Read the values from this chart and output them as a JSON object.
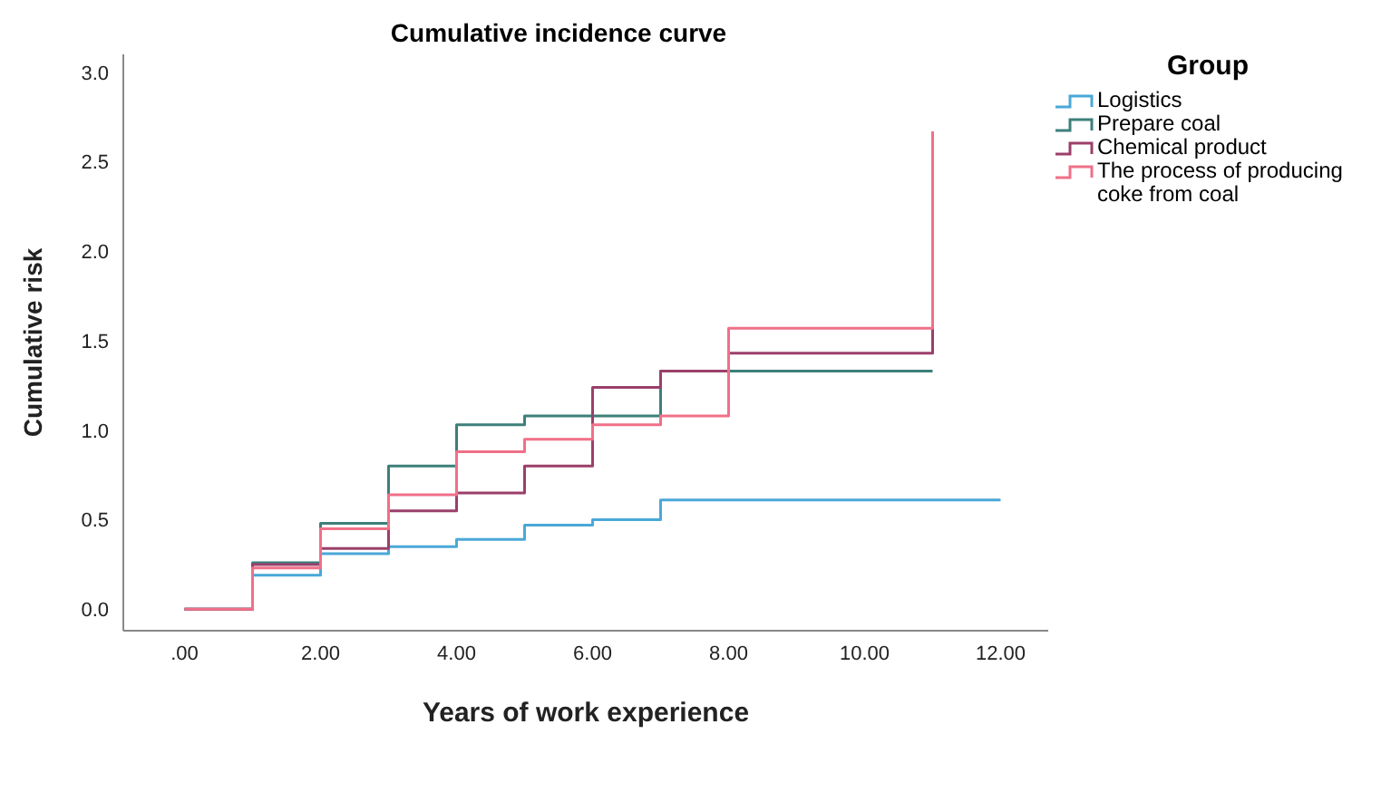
{
  "chart_data": {
    "type": "step",
    "title": "Cumulative incidence curve",
    "xlabel": "Years of work experience",
    "ylabel": "Cumulative risk",
    "legend_title": "Group",
    "legend": "top right",
    "grid": false,
    "marker": "none",
    "line_style": "solid",
    "xlim": [
      -0.9,
      12.7
    ],
    "ylim": [
      -0.12,
      3.1
    ],
    "xticks": [
      {
        "value": 0,
        "label": ".00"
      },
      {
        "value": 2,
        "label": "2.00"
      },
      {
        "value": 4,
        "label": "4.00"
      },
      {
        "value": 6,
        "label": "6.00"
      },
      {
        "value": 8,
        "label": "8.00"
      },
      {
        "value": 10,
        "label": "10.00"
      },
      {
        "value": 12,
        "label": "12.00"
      }
    ],
    "yticks": [
      {
        "value": 0,
        "label": "0.0"
      },
      {
        "value": 0.5,
        "label": "0.5"
      },
      {
        "value": 1,
        "label": "1.0"
      },
      {
        "value": 1.5,
        "label": "1.5"
      },
      {
        "value": 2,
        "label": "2.0"
      },
      {
        "value": 2.5,
        "label": "2.5"
      },
      {
        "value": 3,
        "label": "3.0"
      }
    ],
    "series": [
      {
        "name": "Logistics",
        "color": "#4aa8d8",
        "x": [
          0,
          1,
          2,
          3,
          4,
          5,
          6,
          7,
          12
        ],
        "values": [
          0,
          0.19,
          0.31,
          0.35,
          0.39,
          0.47,
          0.5,
          0.61,
          0.61
        ]
      },
      {
        "name": "Prepare coal",
        "color": "#3d7f7a",
        "x": [
          0,
          1,
          2,
          3,
          4,
          5,
          6,
          7,
          11
        ],
        "values": [
          0,
          0.26,
          0.48,
          0.8,
          1.03,
          1.08,
          1.08,
          1.33,
          1.33
        ]
      },
      {
        "name": "Chemical product",
        "color": "#9b3f6a",
        "x": [
          0,
          1,
          2,
          3,
          4,
          5,
          6,
          7,
          8,
          11
        ],
        "values": [
          0,
          0.25,
          0.34,
          0.55,
          0.65,
          0.8,
          1.24,
          1.33,
          1.43,
          1.94
        ]
      },
      {
        "name": "The process of producing coke from coal",
        "color": "#f07088",
        "x": [
          0,
          1,
          2,
          3,
          4,
          5,
          6,
          7,
          8,
          11
        ],
        "values": [
          0,
          0.23,
          0.45,
          0.64,
          0.88,
          0.95,
          1.03,
          1.08,
          1.57,
          2.67
        ]
      }
    ]
  }
}
